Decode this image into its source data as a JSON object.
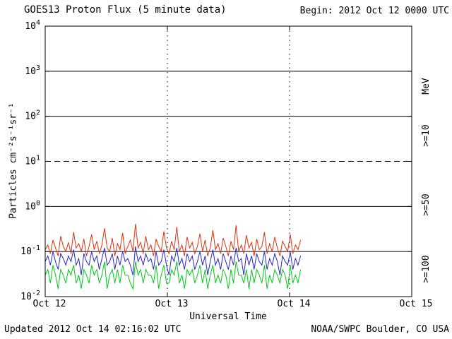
{
  "header": {
    "title": "GOES13 Proton Flux (5 minute data)",
    "begin_label": "Begin: 2012 Oct 12 0000 UTC"
  },
  "footer": {
    "updated": "Updated 2012 Oct 14 02:16:02 UTC",
    "source": "NOAA/SWPC Boulder, CO USA"
  },
  "chart_data": {
    "type": "line",
    "title": "GOES13 Proton Flux (5 minute data)",
    "xlabel": "Universal Time",
    "ylabel": "Particles cm⁻²s⁻¹sr⁻¹",
    "x_tick_labels": [
      "Oct 12",
      "Oct 13",
      "Oct 14",
      "Oct 15"
    ],
    "x_range_days": [
      0,
      3
    ],
    "ylim_log10": [
      -2,
      4
    ],
    "y_ticks": [
      {
        "base": "10",
        "exp": "4",
        "log": 4
      },
      {
        "base": "10",
        "exp": "3",
        "log": 3
      },
      {
        "base": "10",
        "exp": "2",
        "log": 2
      },
      {
        "base": "10",
        "exp": "1",
        "log": 1
      },
      {
        "base": "10",
        "exp": "0",
        "log": 0
      },
      {
        "base": "10",
        "exp": "-1",
        "log": -1
      },
      {
        "base": "10",
        "exp": "-2",
        "log": -2
      }
    ],
    "solid_gridlines_log10": [
      3,
      2,
      0,
      -1
    ],
    "dashed_gridlines_log10": [
      1
    ],
    "day_gridlines": [
      1,
      2
    ],
    "grid": true,
    "legend_position": "right",
    "right_axis_unit": "MeV",
    "series": [
      {
        "name": ">=10",
        "threshold_mev": 10,
        "color": "#e03010",
        "x_start_days": 0,
        "x_end_days": 2.09,
        "values": [
          0.11,
          0.14,
          0.09,
          0.18,
          0.12,
          0.08,
          0.22,
          0.13,
          0.1,
          0.16,
          0.09,
          0.27,
          0.12,
          0.15,
          0.1,
          0.19,
          0.08,
          0.13,
          0.24,
          0.11,
          0.17,
          0.09,
          0.14,
          0.33,
          0.12,
          0.1,
          0.2,
          0.08,
          0.15,
          0.11,
          0.26,
          0.09,
          0.13,
          0.18,
          0.1,
          0.41,
          0.12,
          0.16,
          0.09,
          0.22,
          0.11,
          0.14,
          0.08,
          0.19,
          0.13,
          0.1,
          0.28,
          0.12,
          0.09,
          0.17,
          0.11,
          0.35,
          0.1,
          0.14,
          0.08,
          0.21,
          0.12,
          0.16,
          0.09,
          0.13,
          0.25,
          0.1,
          0.18,
          0.08,
          0.12,
          0.3,
          0.11,
          0.15,
          0.09,
          0.2,
          0.13,
          0.08,
          0.17,
          0.11,
          0.38,
          0.1,
          0.14,
          0.09,
          0.23,
          0.12,
          0.16,
          0.08,
          0.19,
          0.11,
          0.13,
          0.27,
          0.09,
          0.15,
          0.1,
          0.21,
          0.12,
          0.08,
          0.17,
          0.13,
          0.1,
          0.24,
          0.09,
          0.14,
          0.11,
          0.18
        ]
      },
      {
        "name": ">=50",
        "threshold_mev": 50,
        "color": "#2525c8",
        "x_start_days": 0,
        "x_end_days": 2.09,
        "values": [
          0.06,
          0.08,
          0.05,
          0.1,
          0.06,
          0.04,
          0.09,
          0.07,
          0.05,
          0.08,
          0.06,
          0.11,
          0.05,
          0.07,
          0.03,
          0.09,
          0.06,
          0.05,
          0.1,
          0.06,
          0.08,
          0.04,
          0.07,
          0.12,
          0.05,
          0.06,
          0.09,
          0.04,
          0.08,
          0.05,
          0.1,
          0.06,
          0.07,
          0.05,
          0.03,
          0.13,
          0.06,
          0.08,
          0.05,
          0.09,
          0.06,
          0.07,
          0.04,
          0.1,
          0.05,
          0.06,
          0.11,
          0.05,
          0.03,
          0.08,
          0.06,
          0.12,
          0.05,
          0.07,
          0.04,
          0.09,
          0.06,
          0.08,
          0.04,
          0.06,
          0.1,
          0.05,
          0.08,
          0.03,
          0.06,
          0.11,
          0.05,
          0.07,
          0.04,
          0.09,
          0.06,
          0.04,
          0.08,
          0.05,
          0.12,
          0.06,
          0.07,
          0.03,
          0.09,
          0.05,
          0.08,
          0.04,
          0.09,
          0.06,
          0.05,
          0.1,
          0.04,
          0.07,
          0.05,
          0.09,
          0.06,
          0.03,
          0.08,
          0.06,
          0.05,
          0.1,
          0.04,
          0.07,
          0.05,
          0.08
        ]
      },
      {
        "name": ">=100",
        "threshold_mev": 100,
        "color": "#00c818",
        "x_start_days": 0,
        "x_end_days": 2.09,
        "values": [
          0.03,
          0.04,
          0.02,
          0.05,
          0.03,
          0.015,
          0.04,
          0.03,
          0.02,
          0.04,
          0.03,
          0.05,
          0.02,
          0.03,
          0.015,
          0.04,
          0.03,
          0.02,
          0.05,
          0.03,
          0.04,
          0.02,
          0.03,
          0.06,
          0.015,
          0.03,
          0.04,
          0.02,
          0.04,
          0.02,
          0.05,
          0.03,
          0.03,
          0.02,
          0.015,
          0.06,
          0.03,
          0.04,
          0.02,
          0.04,
          0.03,
          0.03,
          0.02,
          0.05,
          0.015,
          0.03,
          0.05,
          0.02,
          0.02,
          0.04,
          0.03,
          0.06,
          0.02,
          0.03,
          0.015,
          0.04,
          0.03,
          0.04,
          0.02,
          0.03,
          0.05,
          0.02,
          0.04,
          0.015,
          0.03,
          0.05,
          0.02,
          0.03,
          0.02,
          0.04,
          0.03,
          0.015,
          0.04,
          0.02,
          0.06,
          0.03,
          0.03,
          0.02,
          0.04,
          0.015,
          0.04,
          0.02,
          0.04,
          0.03,
          0.02,
          0.05,
          0.015,
          0.03,
          0.02,
          0.04,
          0.03,
          0.02,
          0.04,
          0.03,
          0.015,
          0.05,
          0.02,
          0.03,
          0.02,
          0.04
        ]
      }
    ]
  }
}
